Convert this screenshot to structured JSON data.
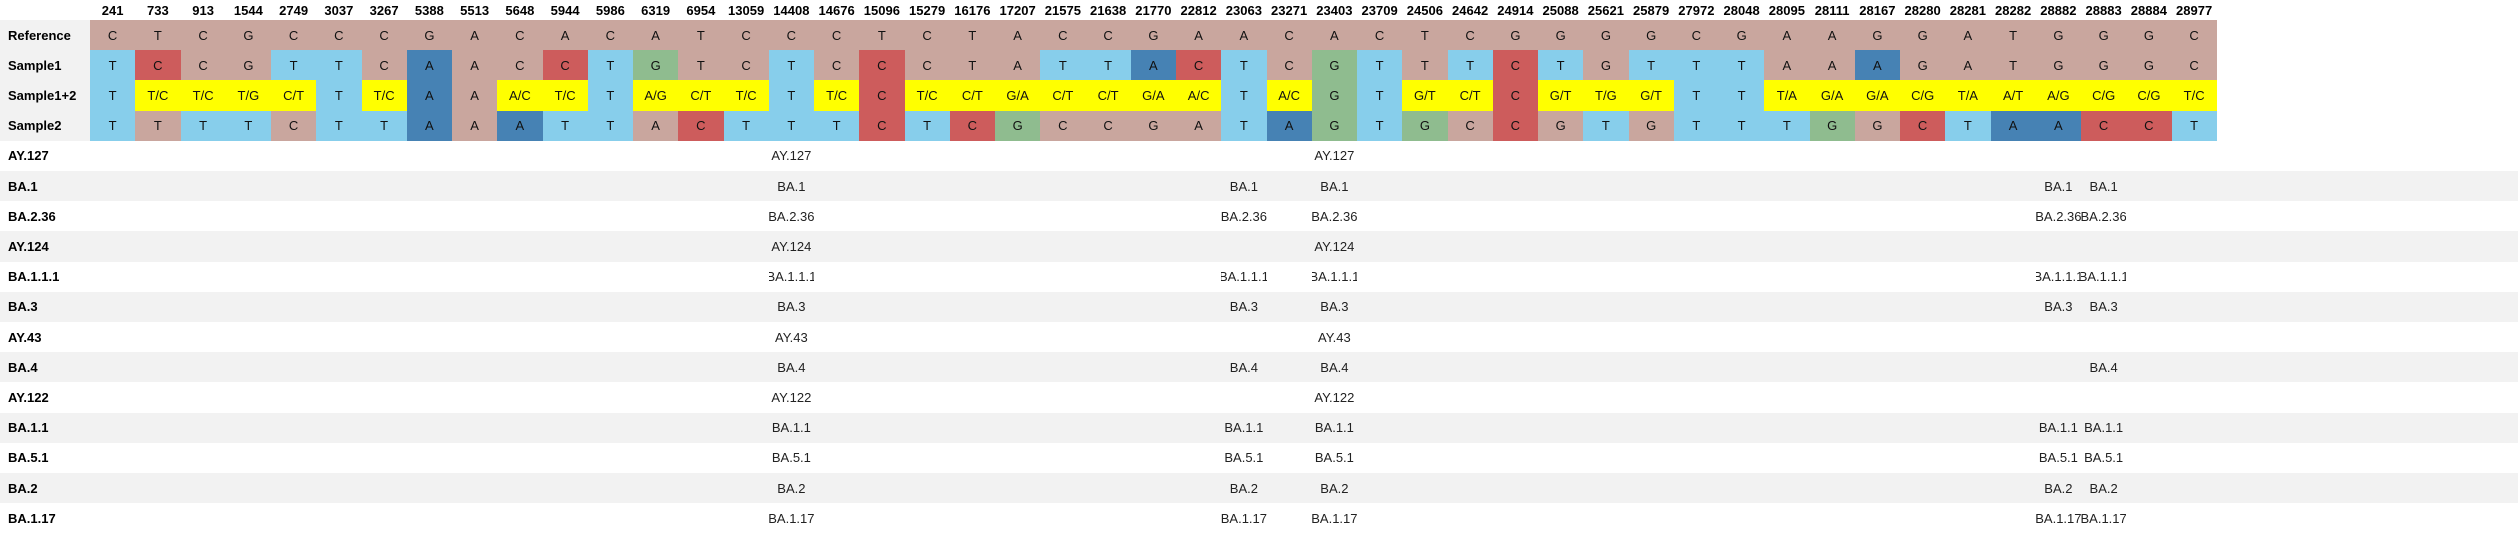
{
  "positions": [
    "241",
    "733",
    "913",
    "1544",
    "2749",
    "3037",
    "3267",
    "5388",
    "5513",
    "5648",
    "5944",
    "5986",
    "6319",
    "6954",
    "13059",
    "14408",
    "14676",
    "15096",
    "15279",
    "16176",
    "17207",
    "21575",
    "21638",
    "21770",
    "22812",
    "23063",
    "23271",
    "23403",
    "23709",
    "24506",
    "24642",
    "24914",
    "25088",
    "25621",
    "25879",
    "27972",
    "28048",
    "28095",
    "28111",
    "28167",
    "28280",
    "28281",
    "28282",
    "28882",
    "28883",
    "28884",
    "28977"
  ],
  "colors": {
    "A": "#4682b4",
    "C": "#cd5c5c",
    "G": "#8fbc8f",
    "T": "#87ceeb",
    "ref": "#c9a69e",
    "mixed": "#ffff00",
    "stripe": "#f2f2f2"
  },
  "sequences": [
    {
      "label": "Reference",
      "cells": [
        "C",
        "T",
        "C",
        "G",
        "C",
        "C",
        "C",
        "G",
        "A",
        "C",
        "A",
        "C",
        "A",
        "T",
        "C",
        "C",
        "C",
        "T",
        "C",
        "T",
        "A",
        "C",
        "C",
        "G",
        "A",
        "A",
        "C",
        "A",
        "C",
        "T",
        "C",
        "G",
        "G",
        "G",
        "G",
        "C",
        "G",
        "A",
        "A",
        "G",
        "G",
        "A",
        "T",
        "G",
        "G",
        "G",
        "C"
      ]
    },
    {
      "label": "Sample1",
      "cells": [
        "T",
        "C",
        "C",
        "G",
        "T",
        "T",
        "C",
        "A",
        "A",
        "C",
        "C",
        "T",
        "G",
        "T",
        "C",
        "T",
        "C",
        "C",
        "C",
        "T",
        "A",
        "T",
        "T",
        "A",
        "C",
        "T",
        "C",
        "G",
        "T",
        "T",
        "T",
        "C",
        "T",
        "G",
        "T",
        "T",
        "T",
        "A",
        "A",
        "A",
        "G",
        "A",
        "T",
        "G",
        "G",
        "G",
        "C"
      ]
    },
    {
      "label": "Sample1+2",
      "cells": [
        "T",
        "T/C",
        "T/C",
        "T/G",
        "C/T",
        "T",
        "T/C",
        "A",
        "A",
        "A/C",
        "T/C",
        "T",
        "A/G",
        "C/T",
        "T/C",
        "T",
        "T/C",
        "C",
        "T/C",
        "C/T",
        "G/A",
        "C/T",
        "C/T",
        "G/A",
        "A/C",
        "T",
        "A/C",
        "G",
        "T",
        "G/T",
        "C/T",
        "C",
        "G/T",
        "T/G",
        "G/T",
        "T",
        "T",
        "T/A",
        "G/A",
        "G/A",
        "C/G",
        "T/A",
        "A/T",
        "A/G",
        "C/G",
        "C/G",
        "T/C"
      ]
    },
    {
      "label": "Sample2",
      "cells": [
        "T",
        "T",
        "T",
        "T",
        "C",
        "T",
        "T",
        "A",
        "A",
        "A",
        "T",
        "T",
        "A",
        "C",
        "T",
        "T",
        "T",
        "C",
        "T",
        "C",
        "G",
        "C",
        "C",
        "G",
        "A",
        "T",
        "A",
        "G",
        "T",
        "G",
        "C",
        "C",
        "G",
        "T",
        "G",
        "T",
        "T",
        "T",
        "G",
        "G",
        "C",
        "T",
        "A",
        "A",
        "C",
        "C",
        "T"
      ]
    }
  ],
  "lineages": [
    {
      "label": "AY.127",
      "cells": {
        "15": "AY.127",
        "27": "AY.127"
      }
    },
    {
      "label": "BA.1",
      "cells": {
        "15": "BA.1",
        "25": "BA.1",
        "27": "BA.1",
        "43": "BA.1",
        "44": "BA.1"
      }
    },
    {
      "label": "BA.2.36",
      "cells": {
        "15": "BA.2.36",
        "25": "BA.2.36",
        "27": "BA.2.36",
        "43": "BA.2.36",
        "44": "BA.2.36"
      }
    },
    {
      "label": "AY.124",
      "cells": {
        "15": "AY.124",
        "27": "AY.124"
      }
    },
    {
      "label": "BA.1.1.1",
      "cells": {
        "15": "BA.1.1.1",
        "25": "BA.1.1.1",
        "27": "BA.1.1.1",
        "43": "BA.1.1.1",
        "44": "BA.1.1.1"
      }
    },
    {
      "label": "BA.3",
      "cells": {
        "15": "BA.3",
        "25": "BA.3",
        "27": "BA.3",
        "43": "BA.3",
        "44": "BA.3"
      }
    },
    {
      "label": "AY.43",
      "cells": {
        "15": "AY.43",
        "27": "AY.43"
      }
    },
    {
      "label": "BA.4",
      "cells": {
        "15": "BA.4",
        "25": "BA.4",
        "27": "BA.4",
        "44": "BA.4"
      }
    },
    {
      "label": "AY.122",
      "cells": {
        "15": "AY.122",
        "27": "AY.122"
      }
    },
    {
      "label": "BA.1.1",
      "cells": {
        "15": "BA.1.1",
        "25": "BA.1.1",
        "27": "BA.1.1",
        "43": "BA.1.1",
        "44": "BA.1.1"
      }
    },
    {
      "label": "BA.5.1",
      "cells": {
        "15": "BA.5.1",
        "25": "BA.5.1",
        "27": "BA.5.1",
        "43": "BA.5.1",
        "44": "BA.5.1"
      }
    },
    {
      "label": "BA.2",
      "cells": {
        "15": "BA.2",
        "25": "BA.2",
        "27": "BA.2",
        "43": "BA.2",
        "44": "BA.2"
      }
    },
    {
      "label": "BA.1.17",
      "cells": {
        "15": "BA.1.17",
        "25": "BA.1.17",
        "27": "BA.1.17",
        "43": "BA.1.17",
        "44": "BA.1.17"
      }
    }
  ]
}
